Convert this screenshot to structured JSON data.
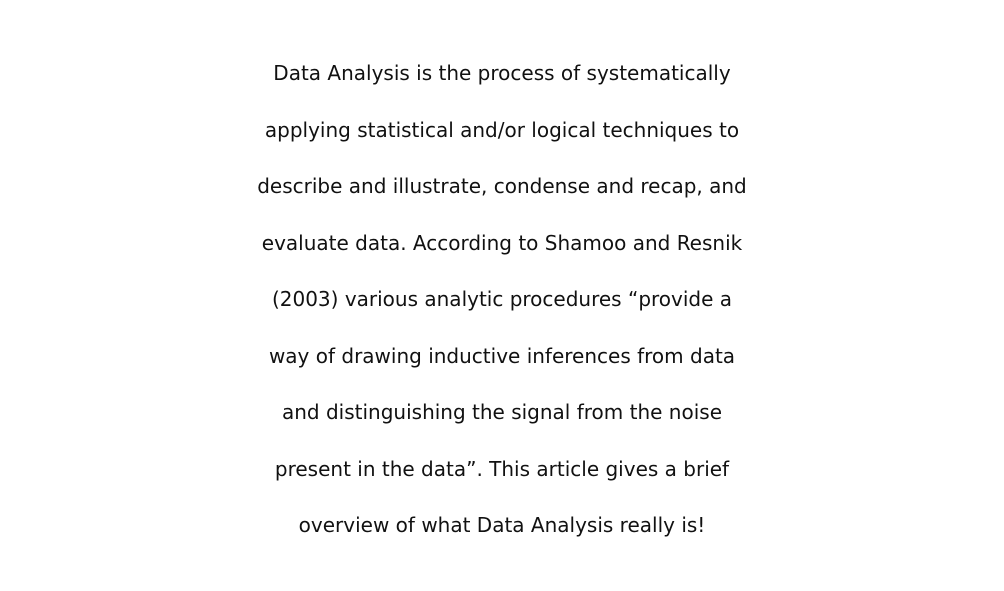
{
  "paragraph": {
    "lines": [
      "Data Analysis is the process of systematically",
      "applying statistical and/or logical techniques to",
      "describe and illustrate, condense and recap, and",
      "evaluate data. According to Shamoo and Resnik",
      "(2003) various analytic procedures “provide a",
      "way of drawing inductive inferences from data",
      "and distinguishing the signal from the noise",
      "present in the data”. This article gives a brief",
      "overview of what Data Analysis really is!"
    ]
  },
  "colors": {
    "background": "#ffffff",
    "text": "#111111"
  }
}
